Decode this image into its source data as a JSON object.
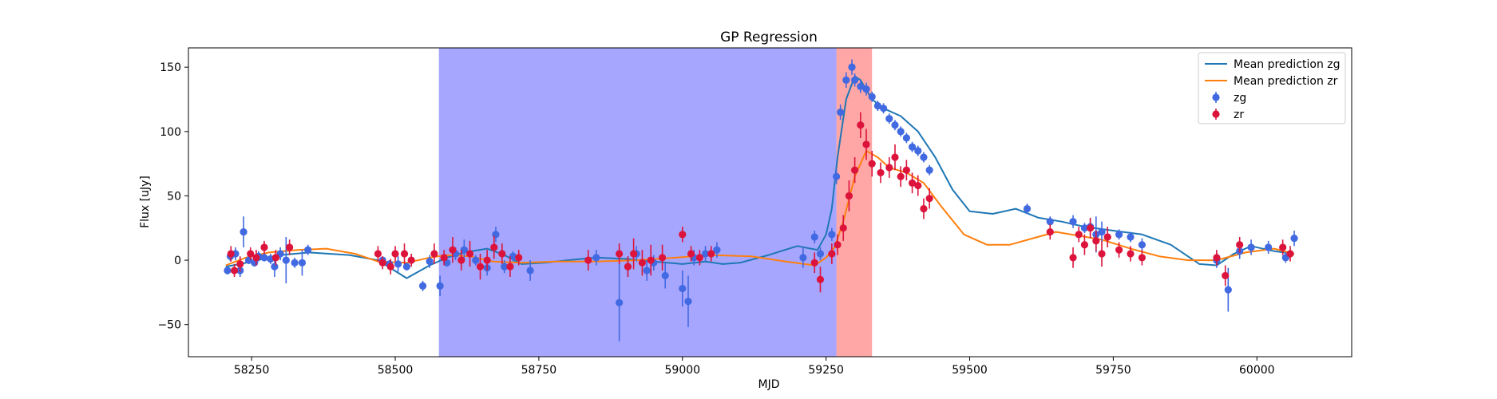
{
  "chart_data": {
    "type": "scatter",
    "title": "GP Regression",
    "xlabel": "MJD",
    "ylabel": "Flux [uJy]",
    "xlim": [
      58140,
      60165
    ],
    "ylim": [
      -75,
      165
    ],
    "xticks": [
      58250,
      58500,
      58750,
      59000,
      59250,
      59500,
      59750,
      60000
    ],
    "yticks": [
      -50,
      0,
      50,
      100,
      150
    ],
    "grid": false,
    "legend_position": "top-right",
    "shaded_regions": [
      {
        "x0": 58576,
        "x1": 59268,
        "color": "#0000ff",
        "alpha": 0.35
      },
      {
        "x0": 59268,
        "x1": 59330,
        "color": "#ff0000",
        "alpha": 0.35
      }
    ],
    "series": [
      {
        "name": "Mean prediction zg",
        "kind": "line",
        "color": "#1f77b4",
        "x": [
          58205,
          58230,
          58260,
          58300,
          58350,
          58420,
          58470,
          58520,
          58560,
          58590,
          58620,
          58660,
          58690,
          58720,
          58760,
          58800,
          58850,
          58900,
          58950,
          59000,
          59040,
          59070,
          59100,
          59150,
          59200,
          59235,
          59250,
          59260,
          59270,
          59285,
          59300,
          59310,
          59330,
          59350,
          59380,
          59410,
          59440,
          59470,
          59500,
          59540,
          59580,
          59620,
          59660,
          59700,
          59750,
          59800,
          59850,
          59900,
          59930,
          59960,
          59990,
          60030,
          60065
        ],
        "y": [
          -5,
          -3,
          0,
          4,
          6,
          4,
          0,
          -14,
          -4,
          2,
          6,
          9,
          4,
          -3,
          -2,
          0,
          2,
          1,
          -1,
          -3,
          -1,
          -3,
          -2,
          4,
          11,
          8,
          20,
          40,
          80,
          125,
          143,
          140,
          125,
          118,
          112,
          100,
          80,
          55,
          38,
          36,
          40,
          33,
          30,
          26,
          23,
          20,
          12,
          -3,
          -4,
          5,
          11,
          7,
          5
        ]
      },
      {
        "name": "Mean prediction zr",
        "kind": "line",
        "color": "#ff7f0e",
        "x": [
          58205,
          58240,
          58280,
          58330,
          58380,
          58430,
          58470,
          58520,
          58560,
          58590,
          58630,
          58670,
          58720,
          58780,
          58850,
          58920,
          58990,
          59050,
          59120,
          59180,
          59230,
          59250,
          59265,
          59280,
          59300,
          59320,
          59340,
          59360,
          59390,
          59420,
          59450,
          59490,
          59530,
          59570,
          59610,
          59650,
          59690,
          59730,
          59780,
          59830,
          59880,
          59930,
          59980,
          60030,
          60065
        ],
        "y": [
          -4,
          2,
          6,
          8,
          9,
          5,
          -1,
          -2,
          2,
          4,
          3,
          -1,
          -2,
          -1,
          -1,
          0,
          2,
          4,
          3,
          -1,
          -4,
          2,
          10,
          30,
          65,
          85,
          80,
          72,
          68,
          60,
          42,
          20,
          12,
          12,
          17,
          22,
          19,
          16,
          9,
          3,
          0,
          0,
          6,
          9,
          5
        ]
      },
      {
        "name": "zg",
        "kind": "errorbar",
        "color": "#4169e1",
        "x": [
          58208,
          58213,
          58222,
          58230,
          58236,
          58245,
          58255,
          58262,
          58272,
          58283,
          58290,
          58300,
          58310,
          58325,
          58338,
          58348,
          58478,
          58490,
          58505,
          58520,
          58548,
          58560,
          58578,
          58590,
          58605,
          58620,
          58640,
          58660,
          58675,
          58690,
          58705,
          58735,
          58850,
          58890,
          58905,
          58920,
          58938,
          58950,
          58970,
          59000,
          59010,
          59020,
          59040,
          59060,
          59210,
          59230,
          59240,
          59260,
          59268,
          59275,
          59285,
          59295,
          59300,
          59310,
          59320,
          59330,
          59340,
          59350,
          59360,
          59370,
          59380,
          59390,
          59400,
          59410,
          59420,
          59430,
          59600,
          59640,
          59680,
          59700,
          59710,
          59720,
          59730,
          59740,
          59760,
          59780,
          59800,
          59930,
          59950,
          59970,
          59990,
          60020,
          60050,
          60065
        ],
        "y": [
          -8,
          3,
          5,
          -8,
          22,
          0,
          -2,
          3,
          2,
          1,
          -5,
          5,
          0,
          -2,
          -2,
          8,
          0,
          -3,
          -3,
          -5,
          -20,
          -1,
          -20,
          -2,
          5,
          8,
          0,
          -6,
          20,
          -5,
          3,
          -8,
          2,
          -33,
          -5,
          5,
          -8,
          -2,
          -12,
          -22,
          -32,
          2,
          5,
          8,
          2,
          18,
          5,
          20,
          65,
          115,
          140,
          150,
          140,
          135,
          133,
          127,
          120,
          118,
          110,
          105,
          100,
          95,
          88,
          85,
          80,
          70,
          40,
          30,
          30,
          25,
          26,
          20,
          22,
          18,
          20,
          18,
          12,
          0,
          -23,
          7,
          10,
          10,
          2,
          17
        ],
        "err": [
          3,
          4,
          5,
          5,
          12,
          3,
          3,
          4,
          3,
          4,
          8,
          5,
          18,
          4,
          10,
          4,
          3,
          3,
          6,
          3,
          4,
          5,
          8,
          3,
          5,
          8,
          4,
          6,
          6,
          5,
          4,
          8,
          6,
          30,
          8,
          6,
          8,
          6,
          10,
          14,
          20,
          6,
          6,
          6,
          8,
          5,
          5,
          5,
          6,
          6,
          6,
          6,
          5,
          5,
          5,
          4,
          4,
          4,
          4,
          4,
          4,
          4,
          4,
          4,
          4,
          4,
          4,
          4,
          5,
          4,
          6,
          14,
          8,
          5,
          4,
          4,
          5,
          6,
          17,
          6,
          6,
          5,
          4,
          6
        ]
      },
      {
        "name": "zr",
        "kind": "errorbar",
        "color": "#dc143c",
        "x": [
          58214,
          58220,
          58230,
          58248,
          58258,
          58272,
          58292,
          58316,
          58470,
          58478,
          58492,
          58500,
          58516,
          58528,
          58568,
          58585,
          58600,
          58615,
          58630,
          58648,
          58660,
          58672,
          58686,
          58700,
          58715,
          58836,
          58890,
          58905,
          58915,
          58930,
          58945,
          58965,
          59000,
          59015,
          59030,
          59050,
          59230,
          59240,
          59260,
          59270,
          59280,
          59290,
          59300,
          59310,
          59320,
          59330,
          59345,
          59360,
          59370,
          59380,
          59390,
          59400,
          59410,
          59420,
          59430,
          59640,
          59680,
          59690,
          59700,
          59710,
          59720,
          59730,
          59740,
          59760,
          59780,
          59800,
          59930,
          59945,
          59970,
          60045,
          60058
        ],
        "y": [
          5,
          -8,
          -3,
          5,
          2,
          10,
          2,
          10,
          5,
          -2,
          -5,
          5,
          5,
          0,
          5,
          2,
          8,
          0,
          5,
          -5,
          0,
          10,
          5,
          -5,
          2,
          0,
          5,
          -5,
          5,
          -2,
          0,
          2,
          20,
          5,
          2,
          5,
          -2,
          -15,
          5,
          12,
          25,
          50,
          70,
          105,
          90,
          75,
          68,
          72,
          80,
          65,
          70,
          60,
          58,
          40,
          48,
          22,
          2,
          20,
          12,
          25,
          15,
          5,
          18,
          8,
          5,
          2,
          2,
          -12,
          12,
          10,
          5
        ],
        "err": [
          6,
          5,
          6,
          5,
          6,
          5,
          6,
          6,
          6,
          5,
          6,
          6,
          8,
          5,
          8,
          6,
          10,
          8,
          10,
          10,
          8,
          9,
          8,
          8,
          6,
          8,
          8,
          8,
          12,
          10,
          12,
          10,
          6,
          6,
          6,
          6,
          8,
          10,
          8,
          8,
          10,
          12,
          10,
          10,
          12,
          10,
          8,
          8,
          10,
          8,
          8,
          8,
          8,
          8,
          8,
          6,
          8,
          6,
          8,
          8,
          8,
          10,
          8,
          6,
          6,
          6,
          6,
          8,
          6,
          6,
          6
        ]
      }
    ]
  },
  "legend": {
    "items": [
      {
        "label": "Mean prediction zg",
        "kind": "line",
        "color": "#1f77b4"
      },
      {
        "label": "Mean prediction zr",
        "kind": "line",
        "color": "#ff7f0e"
      },
      {
        "label": "zg",
        "kind": "marker",
        "color": "#4169e1"
      },
      {
        "label": "zr",
        "kind": "marker",
        "color": "#dc143c"
      }
    ]
  }
}
